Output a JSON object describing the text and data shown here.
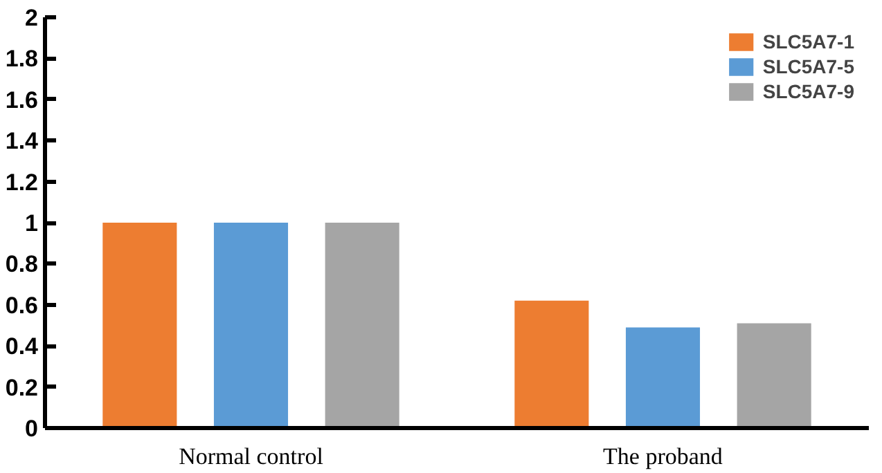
{
  "chart_data": {
    "type": "bar",
    "categories": [
      "Normal control",
      "The proband"
    ],
    "series": [
      {
        "name": "SLC5A7-1",
        "color": "#ed7d31",
        "values": [
          1.0,
          0.62
        ]
      },
      {
        "name": "SLC5A7-5",
        "color": "#5b9bd5",
        "values": [
          1.0,
          0.49
        ]
      },
      {
        "name": "SLC5A7-9",
        "color": "#a5a5a5",
        "values": [
          1.0,
          0.51
        ]
      }
    ],
    "ylim": [
      0,
      2
    ],
    "yticks": [
      0,
      0.2,
      0.4,
      0.6,
      0.8,
      1,
      1.2,
      1.4,
      1.6,
      1.8,
      2
    ],
    "grid": false,
    "legend": "top right"
  }
}
